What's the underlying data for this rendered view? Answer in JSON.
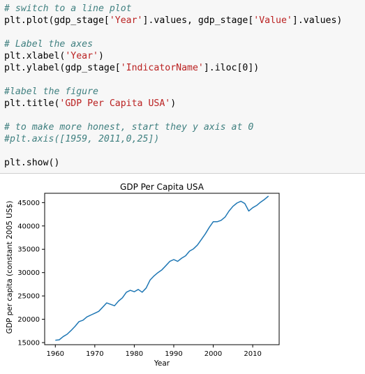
{
  "code": {
    "lines": [
      [
        {
          "t": "# switch to a line plot",
          "c": "cm"
        }
      ],
      [
        {
          "t": "plt.plot(gdp_stage[",
          "c": ""
        },
        {
          "t": "'Year'",
          "c": "st"
        },
        {
          "t": "].values, gdp_stage[",
          "c": ""
        },
        {
          "t": "'Value'",
          "c": "st"
        },
        {
          "t": "].values)",
          "c": ""
        }
      ],
      [
        {
          "t": "# Label the axes",
          "c": "cm"
        }
      ],
      [
        {
          "t": "plt.xlabel(",
          "c": ""
        },
        {
          "t": "'Year'",
          "c": "st"
        },
        {
          "t": ")",
          "c": ""
        }
      ],
      [
        {
          "t": "plt.ylabel(gdp_stage[",
          "c": ""
        },
        {
          "t": "'IndicatorName'",
          "c": "st"
        },
        {
          "t": "].iloc[0])",
          "c": ""
        }
      ],
      [
        {
          "t": "#label the figure",
          "c": "cm"
        }
      ],
      [
        {
          "t": "plt.title(",
          "c": ""
        },
        {
          "t": "'GDP Per Capita USA'",
          "c": "st"
        },
        {
          "t": ")",
          "c": ""
        }
      ],
      [
        {
          "t": "# to make more honest, start they y axis at 0",
          "c": "cm"
        }
      ],
      [
        {
          "t": "#plt.axis([1959, 2011,0,25])",
          "c": "cm"
        }
      ],
      [
        {
          "t": "plt.show()",
          "c": ""
        }
      ]
    ]
  },
  "chart_data": {
    "type": "line",
    "title": "GDP Per Capita USA",
    "xlabel": "Year",
    "ylabel": "GDP per capita (constant 2005 US$)",
    "xlim": [
      1957.3,
      2016.7
    ],
    "ylim": [
      14550,
      47000
    ],
    "xticks": [
      1960,
      1970,
      1980,
      1990,
      2000,
      2010
    ],
    "yticks": [
      15000,
      20000,
      25000,
      30000,
      35000,
      40000,
      45000
    ],
    "grid": false,
    "line_color": "#1f77b4",
    "series": [
      {
        "x": [
          1960,
          1961,
          1962,
          1963,
          1964,
          1965,
          1966,
          1967,
          1968,
          1969,
          1970,
          1971,
          1972,
          1973,
          1974,
          1975,
          1976,
          1977,
          1978,
          1979,
          1980,
          1981,
          1982,
          1983,
          1984,
          1985,
          1986,
          1987,
          1988,
          1989,
          1990,
          1991,
          1992,
          1993,
          1994,
          1995,
          1996,
          1997,
          1998,
          1999,
          2000,
          2001,
          2002,
          2003,
          2004,
          2005,
          2006,
          2007,
          2008,
          2009,
          2010,
          2011,
          2012,
          2013,
          2014
        ],
        "values": [
          15500,
          15600,
          16300,
          16800,
          17600,
          18500,
          19500,
          19800,
          20500,
          20900,
          21300,
          21700,
          22600,
          23500,
          23200,
          22900,
          23900,
          24600,
          25800,
          26200,
          25900,
          26400,
          25800,
          26700,
          28400,
          29300,
          30000,
          30600,
          31500,
          32400,
          32800,
          32400,
          33100,
          33600,
          34600,
          35100,
          35900,
          37100,
          38300,
          39700,
          40900,
          40900,
          41200,
          41900,
          43200,
          44200,
          44900,
          45300,
          44800,
          43200,
          43900,
          44400,
          45100,
          45700,
          46400
        ]
      }
    ]
  }
}
